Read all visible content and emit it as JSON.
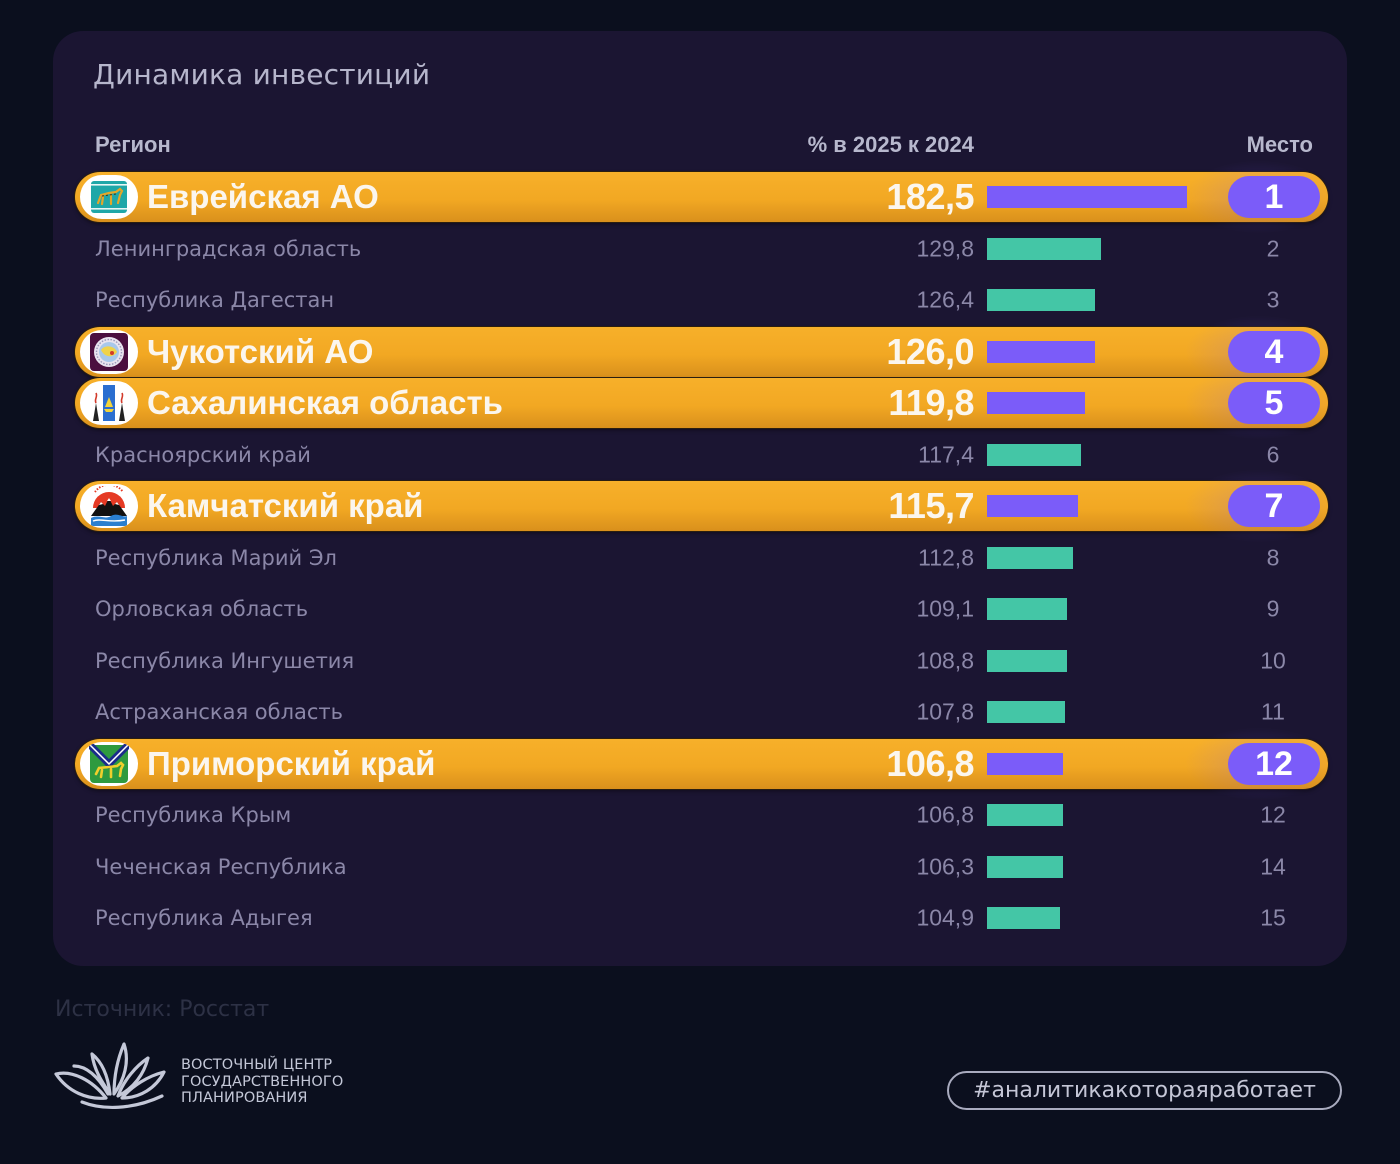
{
  "source": "Источник: Росстат",
  "brand": {
    "lines": [
      "ВОСТОЧНЫЙ ЦЕНТР",
      "ГОСУДАРСТВЕННОГО",
      "ПЛАНИРОВАНИЯ"
    ]
  },
  "hashtag": "#аналитикакотораяработает",
  "colors": {
    "background": "#0b0f1e",
    "card": "#1b1532",
    "highlight_row": "#f2a823",
    "highlight_bar": "#7b5cf9",
    "regular_bar": "#44c6a6",
    "muted_text": "#8b87a8"
  },
  "chart_data": {
    "type": "table",
    "title": "Динамика инвестиций",
    "columns": {
      "region": "Регион",
      "value": "% в 2025 к 2024",
      "place": "Место"
    },
    "bar_baseline": 60,
    "rows": [
      {
        "region": "Еврейская АО",
        "value": 182.5,
        "label": "182,5",
        "place": "1",
        "highlight": true,
        "emblem": "jewish-ao-emblem-icon"
      },
      {
        "region": "Ленинградская область",
        "value": 129.8,
        "label": "129,8",
        "place": "2",
        "highlight": false
      },
      {
        "region": "Республика Дагестан",
        "value": 126.4,
        "label": "126,4",
        "place": "3",
        "highlight": false
      },
      {
        "region": "Чукотский АО",
        "value": 126.0,
        "label": "126,0",
        "place": "4",
        "highlight": true,
        "emblem": "chukotka-emblem-icon"
      },
      {
        "region": "Сахалинская область",
        "value": 119.8,
        "label": "119,8",
        "place": "5",
        "highlight": true,
        "emblem": "sakhalin-emblem-icon"
      },
      {
        "region": "Красноярский край",
        "value": 117.4,
        "label": "117,4",
        "place": "6",
        "highlight": false
      },
      {
        "region": "Камчатский край",
        "value": 115.7,
        "label": "115,7",
        "place": "7",
        "highlight": true,
        "emblem": "kamchatka-emblem-icon"
      },
      {
        "region": "Республика Марий Эл",
        "value": 112.8,
        "label": "112,8",
        "place": "8",
        "highlight": false
      },
      {
        "region": "Орловская область",
        "value": 109.1,
        "label": "109,1",
        "place": "9",
        "highlight": false
      },
      {
        "region": "Республика Ингушетия",
        "value": 108.8,
        "label": "108,8",
        "place": "10",
        "highlight": false
      },
      {
        "region": "Астраханская область",
        "value": 107.8,
        "label": "107,8",
        "place": "11",
        "highlight": false
      },
      {
        "region": "Приморский край",
        "value": 106.8,
        "label": "106,8",
        "place": "12",
        "highlight": true,
        "emblem": "primorye-emblem-icon"
      },
      {
        "region": "Республика Крым",
        "value": 106.8,
        "label": "106,8",
        "place": "12",
        "highlight": false
      },
      {
        "region": "Чеченская Республика",
        "value": 106.3,
        "label": "106,3",
        "place": "14",
        "highlight": false
      },
      {
        "region": "Республика Адыгея",
        "value": 104.9,
        "label": "104,9",
        "place": "15",
        "highlight": false
      }
    ]
  }
}
